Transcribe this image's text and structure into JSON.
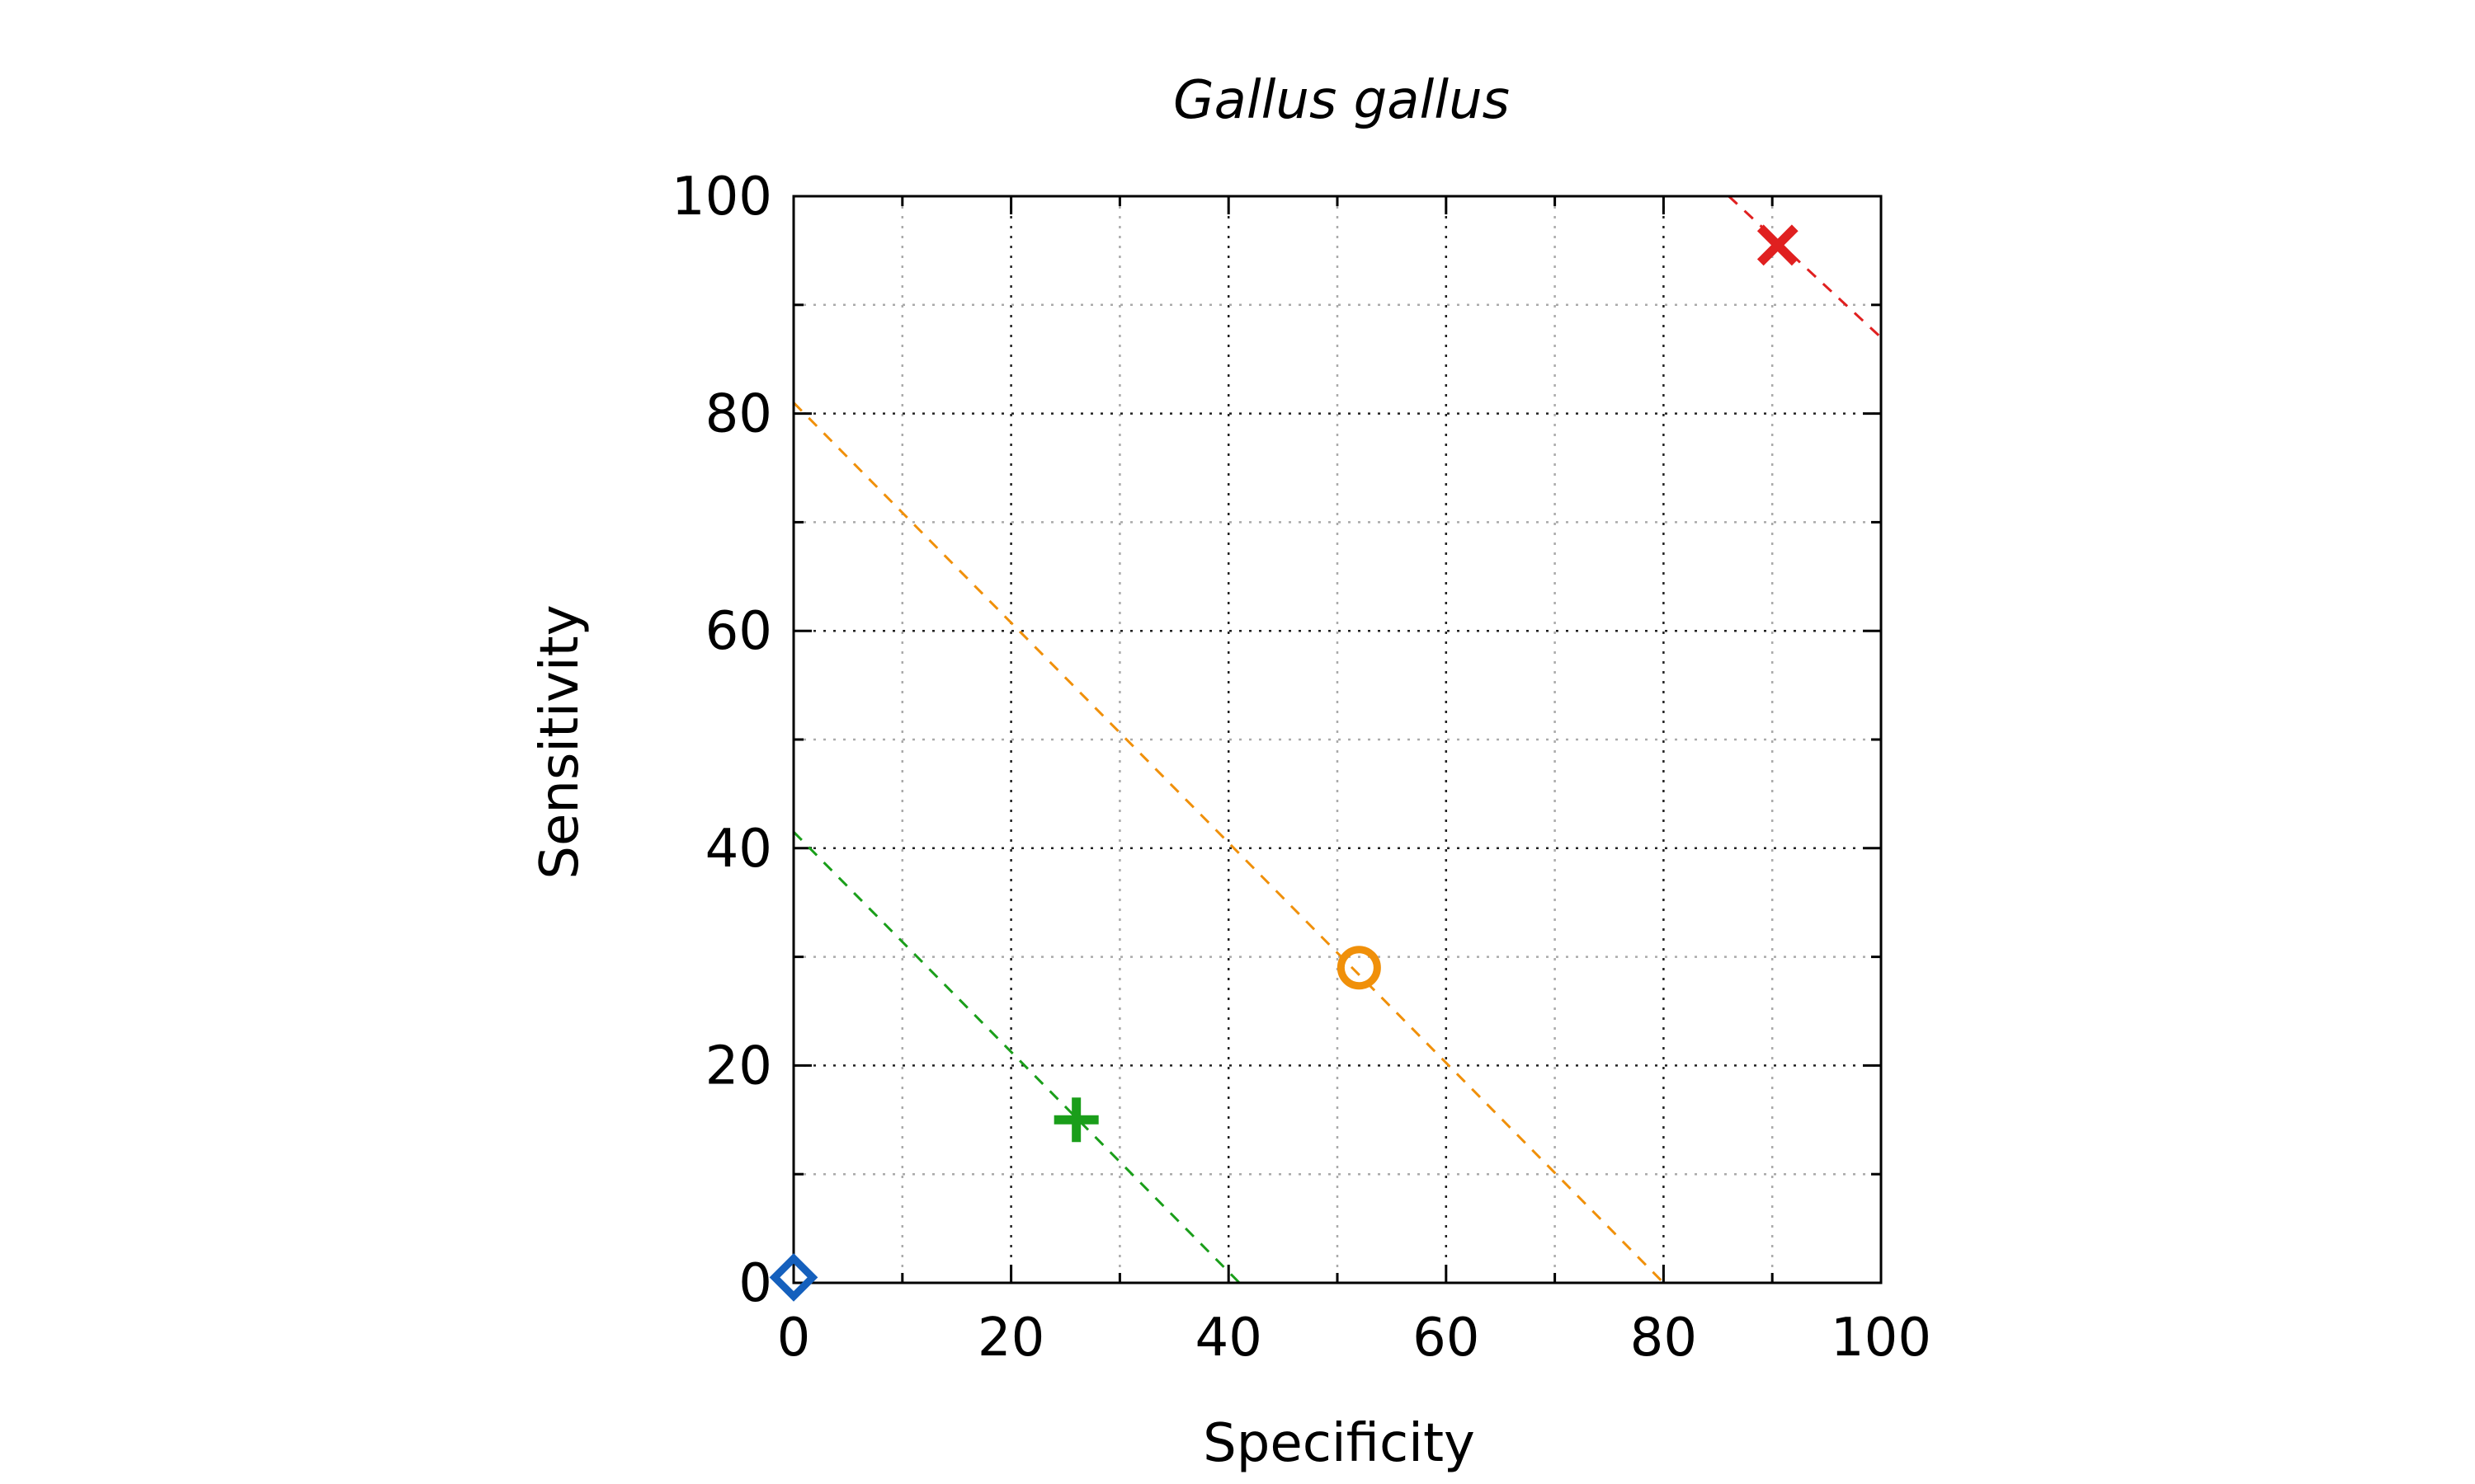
{
  "chart_data": {
    "type": "scatter",
    "title": "Gallus gallus",
    "xlabel": "Specificity",
    "ylabel": "Sensitivity",
    "xlim": [
      0,
      100
    ],
    "ylim": [
      0,
      100
    ],
    "xticks": [
      0,
      20,
      40,
      60,
      80,
      100
    ],
    "yticks": [
      0,
      20,
      40,
      60,
      80,
      100
    ],
    "minor_grid_step": 10,
    "grid": true,
    "points": [
      {
        "x": 0,
        "y": 0.5,
        "marker": "diamond",
        "color": "#1560bd"
      },
      {
        "x": 26,
        "y": 15,
        "marker": "plus",
        "color": "#1a9e1a"
      },
      {
        "x": 52,
        "y": 29,
        "marker": "circle",
        "color": "#f0900a"
      },
      {
        "x": 90.5,
        "y": 95.5,
        "marker": "cross",
        "color": "#e02020"
      }
    ],
    "lines": [
      {
        "x1": 0,
        "y1": 41.5,
        "x2": 41,
        "y2": 0,
        "color": "#1a9e1a",
        "style": "dashed"
      },
      {
        "x1": 0,
        "y1": 81,
        "x2": 80,
        "y2": 0,
        "color": "#f0900a",
        "style": "dashed"
      },
      {
        "x1": 86,
        "y1": 100,
        "x2": 100,
        "y2": 87,
        "color": "#e02020",
        "style": "dashed"
      }
    ]
  }
}
